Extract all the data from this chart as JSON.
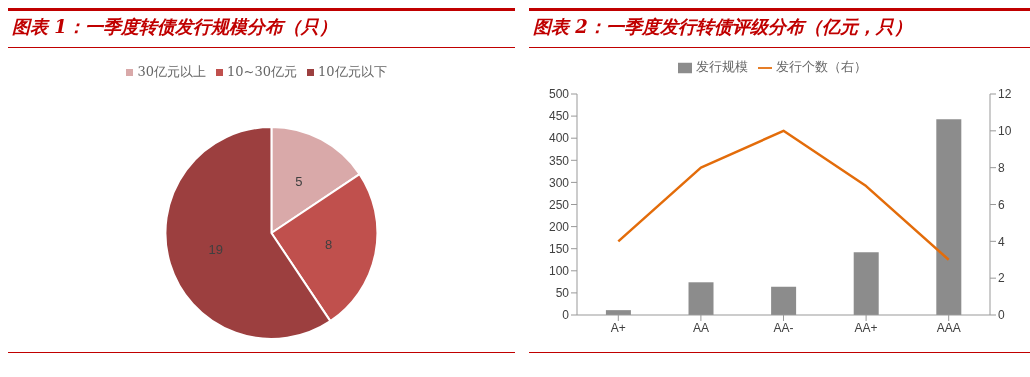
{
  "chart_data": [
    {
      "type": "pie",
      "title": "图表 1：一季度转债发行规模分布（只）",
      "categories": [
        "30亿元以上",
        "10~30亿元",
        "10亿元以下"
      ],
      "values": [
        5,
        8,
        19
      ],
      "colors": [
        "#d9a9a9",
        "#c0504d",
        "#9c3f3f"
      ],
      "data_labels": true,
      "legend": "top"
    },
    {
      "type": "bar",
      "title": "图表 2：一季度发行转债评级分布（亿元，只）",
      "categories": [
        "A+",
        "AA",
        "AA-",
        "AA+",
        "AAA"
      ],
      "series": [
        {
          "name": "发行规模",
          "color": "#8c8c8c",
          "values": [
            11,
            74,
            64,
            142,
            443
          ]
        },
        {
          "name": "发行个数（右）",
          "type": "line",
          "axis": "y2",
          "color": "#e36c0a",
          "values": [
            4,
            8,
            10,
            7,
            3
          ]
        }
      ],
      "ylim": [
        0,
        500
      ],
      "yticks": [
        0,
        50,
        100,
        150,
        200,
        250,
        300,
        350,
        400,
        450,
        500
      ],
      "y2lim": [
        0,
        12
      ],
      "y2ticks": [
        0,
        2,
        4,
        6,
        8,
        10,
        12
      ],
      "legend": "top",
      "grid": false,
      "marker": "none"
    }
  ]
}
